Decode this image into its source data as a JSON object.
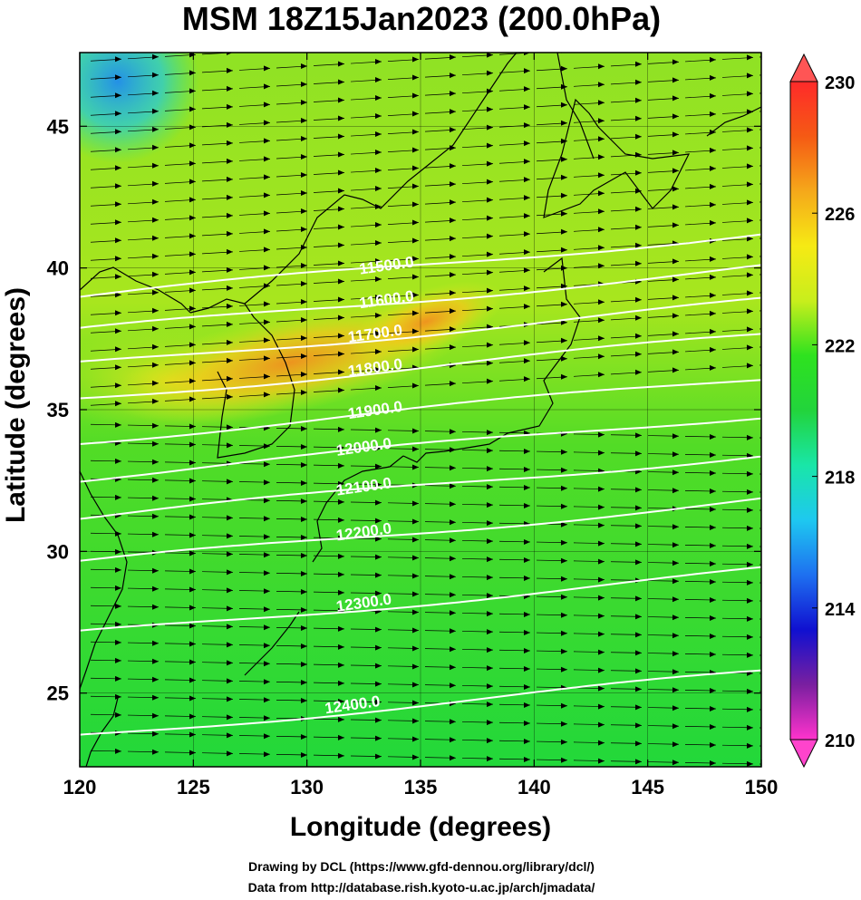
{
  "title": "MSM 18Z15Jan2023 (200.0hPa)",
  "credits": {
    "line1": "Drawing by DCL (https://www.gfd-dennou.org/library/dcl/)",
    "line2": "Data from http://database.rish.kyoto-u.ac.jp/arch/jmadata/"
  },
  "chart_data": {
    "type": "heatmap",
    "title": "MSM 18Z15Jan2023 (200.0hPa)",
    "xlabel": "Longitude (degrees)",
    "ylabel": "Latitude  (degrees)",
    "xlim": [
      120,
      150
    ],
    "ylim": [
      22.4,
      47.6
    ],
    "x_ticks": [
      120,
      125,
      130,
      135,
      140,
      145,
      150
    ],
    "y_ticks": [
      25,
      30,
      35,
      40,
      45
    ],
    "grid": true,
    "field": "temperature (shaded), geopotential height contours (white), wind vectors (black arrows)",
    "colorbar": {
      "min": 210,
      "max": 230,
      "ticks": [
        210,
        214,
        218,
        222,
        226,
        230
      ],
      "colors": [
        "#ff33cc",
        "#7a1fa0",
        "#1010d0",
        "#1e70f0",
        "#1ec8f0",
        "#19e6a8",
        "#22d43c",
        "#2ee21f",
        "#c8ee1c",
        "#f6ea14",
        "#f5a81a",
        "#f55a14",
        "#ff2a2a"
      ]
    },
    "contours": [
      {
        "label": "11500.0",
        "label_x": 133.5,
        "label_y": 40.1
      },
      {
        "label": "11600.0",
        "label_x": 133.5,
        "label_y": 38.9
      },
      {
        "label": "11700.0",
        "label_x": 133.0,
        "label_y": 37.7
      },
      {
        "label": "11800.0",
        "label_x": 133.0,
        "label_y": 36.5
      },
      {
        "label": "11900.0",
        "label_x": 133.0,
        "label_y": 35.0
      },
      {
        "label": "12000.0",
        "label_x": 132.5,
        "label_y": 33.7
      },
      {
        "label": "12100.0",
        "label_x": 132.5,
        "label_y": 32.3
      },
      {
        "label": "12200.0",
        "label_x": 132.5,
        "label_y": 30.7
      },
      {
        "label": "12300.0",
        "label_x": 132.5,
        "label_y": 28.2
      },
      {
        "label": "12400.0",
        "label_x": 132.0,
        "label_y": 24.6
      }
    ]
  }
}
